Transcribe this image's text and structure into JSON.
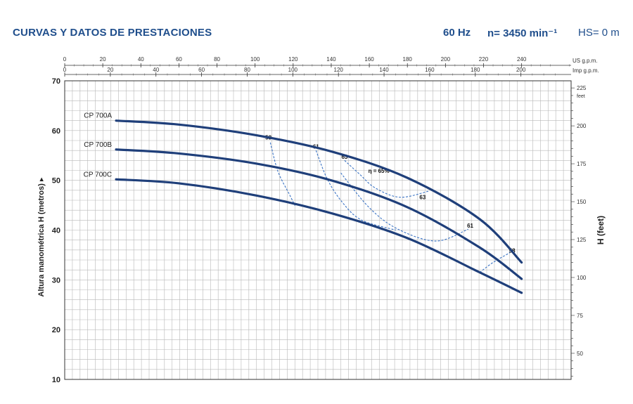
{
  "header": {
    "title": "CURVAS Y DATOS DE PRESTACIONES",
    "frequency": "60 Hz",
    "speed": "n= 3450 min⁻¹",
    "hs": "HS= 0 m"
  },
  "colors": {
    "curve": "#1f3f7a",
    "efficiency": "#3a73c4",
    "grid": "#b8b8b8",
    "header": "#1f4e8c"
  },
  "chart_data": {
    "type": "line",
    "title": "",
    "xlabel": "",
    "ylabel": "Altura manométrica H (metros)",
    "y2label": "H (feet)",
    "top_axes": [
      {
        "label": "US g.p.m.",
        "xlim": [
          0,
          266
        ],
        "ticks": [
          0,
          20,
          40,
          60,
          80,
          100,
          120,
          140,
          160,
          180,
          200,
          220,
          240
        ]
      },
      {
        "label": "Imp g.p.m.",
        "xlim": [
          0,
          222
        ],
        "ticks": [
          0,
          20,
          40,
          60,
          80,
          100,
          120,
          140,
          160,
          180,
          200
        ]
      }
    ],
    "ylim": [
      10,
      70
    ],
    "yticks": [
      10,
      20,
      30,
      40,
      50,
      60,
      70
    ],
    "y2lim": [
      32.8,
      229.7
    ],
    "y2ticks": [
      50,
      75,
      100,
      125,
      150,
      175,
      200,
      225
    ],
    "y2unit": "feet",
    "grid": true,
    "series": [
      {
        "name": "CP 700A",
        "x": [
          27,
          60,
          100,
          140,
          180,
          218,
          240
        ],
        "y": [
          62,
          61.2,
          59.1,
          55.8,
          50.5,
          42.2,
          33.5
        ]
      },
      {
        "name": "CP 700B",
        "x": [
          27,
          60,
          100,
          140,
          180,
          218,
          240
        ],
        "y": [
          56.2,
          55.4,
          53.4,
          50.0,
          44.6,
          36.5,
          30.2
        ]
      },
      {
        "name": "CP 700C",
        "x": [
          27,
          60,
          100,
          140,
          180,
          218,
          240
        ],
        "y": [
          50.2,
          49.4,
          47.0,
          43.4,
          38.4,
          31.5,
          27.4
        ]
      }
    ],
    "efficiency": {
      "symbol_label": "η = 65%",
      "labels": [
        {
          "text": "58",
          "x": 107,
          "y": 58.2
        },
        {
          "text": "61",
          "x": 132,
          "y": 56.4
        },
        {
          "text": "63",
          "x": 147,
          "y": 54.3
        },
        {
          "text": "63",
          "x": 188,
          "y": 46.2
        },
        {
          "text": "61",
          "x": 213,
          "y": 40.5
        },
        {
          "text": "58",
          "x": 235,
          "y": 35.5
        }
      ],
      "curves": [
        {
          "x": [
            108,
            112,
            118,
            121
          ],
          "y": [
            57.6,
            51.8,
            47.2,
            44.9
          ]
        },
        {
          "x": [
            132,
            138,
            146,
            156,
            174
          ],
          "y": [
            56.0,
            50.2,
            45.5,
            42.0,
            40.0
          ]
        },
        {
          "x": [
            147,
            155,
            163,
            176,
            191
          ],
          "y": [
            54.0,
            51.2,
            48.5,
            46.6,
            47.8
          ]
        },
        {
          "x": [
            145,
            160,
            175,
            195,
            212
          ],
          "y": [
            51.5,
            44.5,
            40.2,
            37.8,
            40.2
          ]
        },
        {
          "x": [
            218,
            225,
            234
          ],
          "y": [
            31.5,
            33.5,
            35.5
          ]
        }
      ]
    }
  }
}
